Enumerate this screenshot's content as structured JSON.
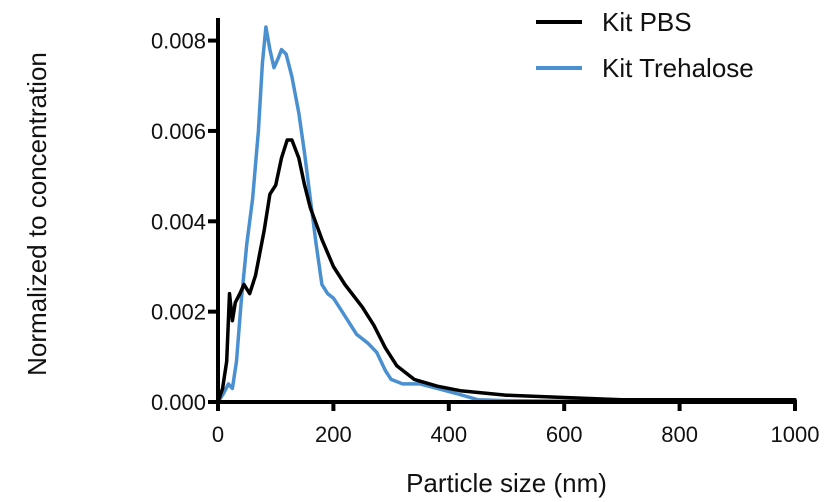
{
  "chart_data": {
    "type": "line",
    "title": "",
    "xlabel": "Particle size (nm)",
    "ylabel": "Normalized to concentration",
    "xlim": [
      0,
      1000
    ],
    "ylim": [
      0,
      0.0085
    ],
    "x_ticks": [
      "0",
      "200",
      "400",
      "600",
      "800",
      "1000"
    ],
    "y_ticks": [
      "0.000",
      "0.002",
      "0.004",
      "0.006",
      "0.008"
    ],
    "grid": false,
    "legend_position": "top-right",
    "series": [
      {
        "name": "Kit PBS",
        "color": "#000000",
        "points": [
          [
            0,
            0
          ],
          [
            8,
            0.0003
          ],
          [
            15,
            0.0009
          ],
          [
            20,
            0.0024
          ],
          [
            25,
            0.0018
          ],
          [
            30,
            0.0022
          ],
          [
            38,
            0.0024
          ],
          [
            45,
            0.0026
          ],
          [
            55,
            0.0024
          ],
          [
            65,
            0.0028
          ],
          [
            80,
            0.0038
          ],
          [
            90,
            0.0046
          ],
          [
            100,
            0.0048
          ],
          [
            110,
            0.0054
          ],
          [
            120,
            0.0058
          ],
          [
            128,
            0.0058
          ],
          [
            140,
            0.0054
          ],
          [
            150,
            0.0048
          ],
          [
            160,
            0.0043
          ],
          [
            180,
            0.0036
          ],
          [
            200,
            0.003
          ],
          [
            220,
            0.0026
          ],
          [
            250,
            0.0021
          ],
          [
            270,
            0.0017
          ],
          [
            290,
            0.0012
          ],
          [
            310,
            0.0008
          ],
          [
            340,
            0.0005
          ],
          [
            380,
            0.00035
          ],
          [
            420,
            0.00025
          ],
          [
            460,
            0.0002
          ],
          [
            500,
            0.00015
          ],
          [
            600,
            0.0001
          ],
          [
            700,
            5e-05
          ],
          [
            800,
            5e-05
          ],
          [
            1000,
            5e-05
          ]
        ]
      },
      {
        "name": "Kit Trehalose",
        "color": "#4a90d0",
        "points": [
          [
            0,
            0
          ],
          [
            10,
            0.0002
          ],
          [
            18,
            0.0004
          ],
          [
            25,
            0.0003
          ],
          [
            32,
            0.0009
          ],
          [
            40,
            0.0022
          ],
          [
            50,
            0.0035
          ],
          [
            60,
            0.0045
          ],
          [
            70,
            0.006
          ],
          [
            77,
            0.0075
          ],
          [
            83,
            0.0083
          ],
          [
            90,
            0.0078
          ],
          [
            97,
            0.0074
          ],
          [
            104,
            0.0076
          ],
          [
            110,
            0.0078
          ],
          [
            118,
            0.0077
          ],
          [
            128,
            0.0072
          ],
          [
            140,
            0.0064
          ],
          [
            150,
            0.0055
          ],
          [
            160,
            0.0045
          ],
          [
            170,
            0.0035
          ],
          [
            180,
            0.0026
          ],
          [
            190,
            0.0024
          ],
          [
            200,
            0.0023
          ],
          [
            215,
            0.002
          ],
          [
            240,
            0.0015
          ],
          [
            260,
            0.0013
          ],
          [
            275,
            0.0011
          ],
          [
            290,
            0.0007
          ],
          [
            300,
            0.0005
          ],
          [
            320,
            0.0004
          ],
          [
            350,
            0.0004
          ],
          [
            380,
            0.0003
          ],
          [
            410,
            0.0002
          ],
          [
            450,
            5e-05
          ],
          [
            500,
            3e-05
          ],
          [
            600,
            2e-05
          ],
          [
            700,
            3e-05
          ],
          [
            800,
            5e-05
          ],
          [
            900,
            2e-05
          ],
          [
            1000,
            2e-05
          ]
        ]
      }
    ]
  }
}
